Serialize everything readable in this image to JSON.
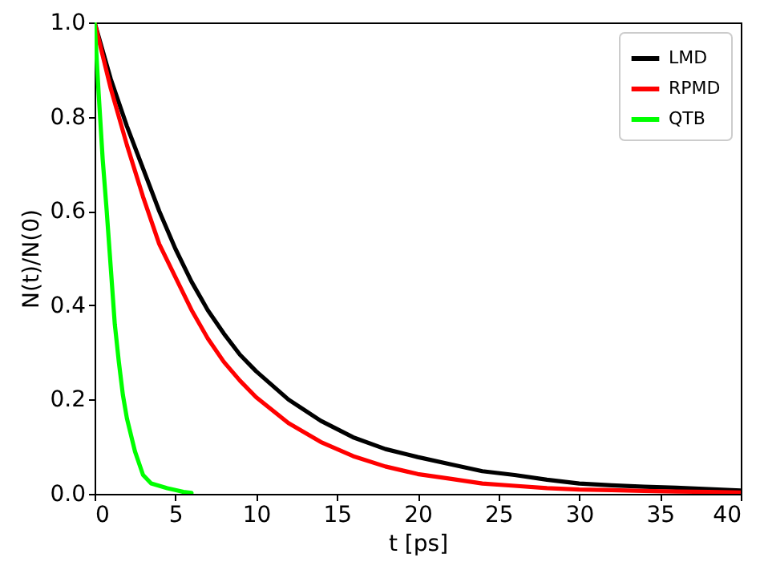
{
  "chart_data": {
    "type": "line",
    "xlabel": "t [ps]",
    "ylabel": "N(t)/N(0)",
    "xlim": [
      0,
      40
    ],
    "xticks": [
      0,
      5,
      10,
      15,
      20,
      25,
      30,
      35,
      40
    ],
    "ylim": [
      0,
      1
    ],
    "yticks": [
      {
        "value": 0,
        "label": "0.0"
      },
      {
        "value": 0.2,
        "label": "0.2"
      },
      {
        "value": 0.4,
        "label": "0.4"
      },
      {
        "value": 0.6,
        "label": "0.6"
      },
      {
        "value": 0.8,
        "label": "0.8"
      },
      {
        "value": 1,
        "label": "1.0"
      }
    ],
    "grid": false,
    "legend": "top right",
    "marker": "none",
    "line_style": "solid",
    "series": [
      {
        "name": "LMD",
        "color": "#000000",
        "x": [
          0,
          1,
          2,
          3,
          4,
          5,
          6,
          7,
          8,
          9,
          10,
          12,
          14,
          16,
          18,
          20,
          22,
          24,
          26,
          28,
          30,
          32,
          34,
          36,
          38,
          40
        ],
        "values": [
          1.0,
          0.88,
          0.78,
          0.69,
          0.6,
          0.52,
          0.45,
          0.39,
          0.34,
          0.295,
          0.26,
          0.2,
          0.155,
          0.12,
          0.095,
          0.078,
          0.063,
          0.048,
          0.04,
          0.03,
          0.022,
          0.018,
          0.015,
          0.013,
          0.01,
          0.007
        ]
      },
      {
        "name": "RPMD",
        "color": "#ff0000",
        "x": [
          0,
          1,
          2,
          3,
          4,
          5,
          6,
          7,
          8,
          9,
          10,
          12,
          14,
          16,
          18,
          20,
          22,
          24,
          26,
          28,
          30,
          32,
          34,
          36,
          38,
          40
        ],
        "values": [
          1.0,
          0.86,
          0.74,
          0.63,
          0.53,
          0.46,
          0.39,
          0.33,
          0.28,
          0.24,
          0.205,
          0.15,
          0.11,
          0.08,
          0.058,
          0.042,
          0.032,
          0.022,
          0.017,
          0.012,
          0.009,
          0.008,
          0.006,
          0.005,
          0.004,
          0.003
        ]
      },
      {
        "name": "QTB",
        "color": "#00ff00",
        "x": [
          0,
          0.25,
          0.5,
          0.75,
          1,
          1.25,
          1.5,
          1.75,
          2,
          2.5,
          3,
          3.5,
          4,
          4.5,
          5,
          5.5,
          6
        ],
        "values": [
          1.0,
          0.85,
          0.71,
          0.6,
          0.48,
          0.36,
          0.28,
          0.21,
          0.16,
          0.09,
          0.04,
          0.022,
          0.017,
          0.012,
          0.008,
          0.004,
          0.002
        ]
      }
    ]
  }
}
